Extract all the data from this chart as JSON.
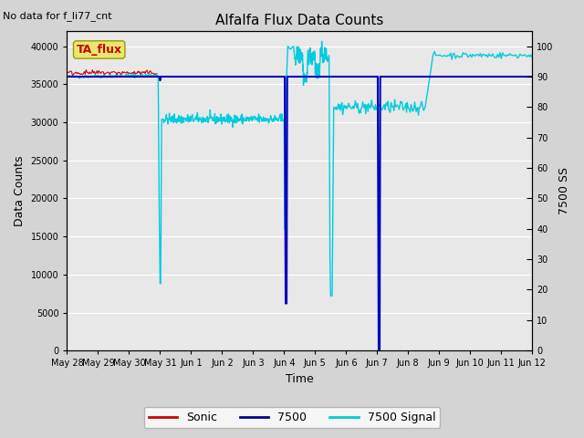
{
  "title": "Alfalfa Flux Data Counts",
  "top_left_text": "No data for f_li77_cnt",
  "xlabel": "Time",
  "ylabel_left": "Data Counts",
  "ylabel_right": "7500 SS",
  "ylim_left": [
    0,
    42000
  ],
  "ylim_right": [
    0,
    105
  ],
  "yticks_left": [
    0,
    5000,
    10000,
    15000,
    20000,
    25000,
    30000,
    35000,
    40000
  ],
  "yticks_right_vals": [
    0,
    10,
    20,
    30,
    40,
    50,
    60,
    70,
    80,
    90,
    100
  ],
  "yticks_right_labels": [
    "0",
    "10",
    "20",
    "30",
    "40",
    "50",
    "60",
    "70",
    "80",
    "90",
    "100"
  ],
  "xtick_labels": [
    "May 28",
    "May 29",
    "May 30",
    "May 31",
    "Jun 1",
    "Jun 2",
    "Jun 3",
    "Jun 4",
    "Jun 5",
    "Jun 6",
    "Jun 7",
    "Jun 8",
    "Jun 9",
    "Jun 10",
    "Jun 11",
    "Jun 12"
  ],
  "legend_entries": [
    "Sonic",
    "7500",
    "7500 Signal"
  ],
  "legend_colors": [
    "#cc0000",
    "#00008b",
    "#00cccc"
  ],
  "bg_color": "#d4d4d4",
  "plot_bg_color": "#e8e8e8",
  "annotation_box_text": "TA_flux",
  "annotation_box_color": "#e8e870",
  "annotation_box_text_color": "#cc0000",
  "line_color_7500": "#0000bb",
  "line_color_signal": "#00ccdd",
  "line_color_sonic": "#cc0000",
  "right_tick_dash_color": "#555555"
}
